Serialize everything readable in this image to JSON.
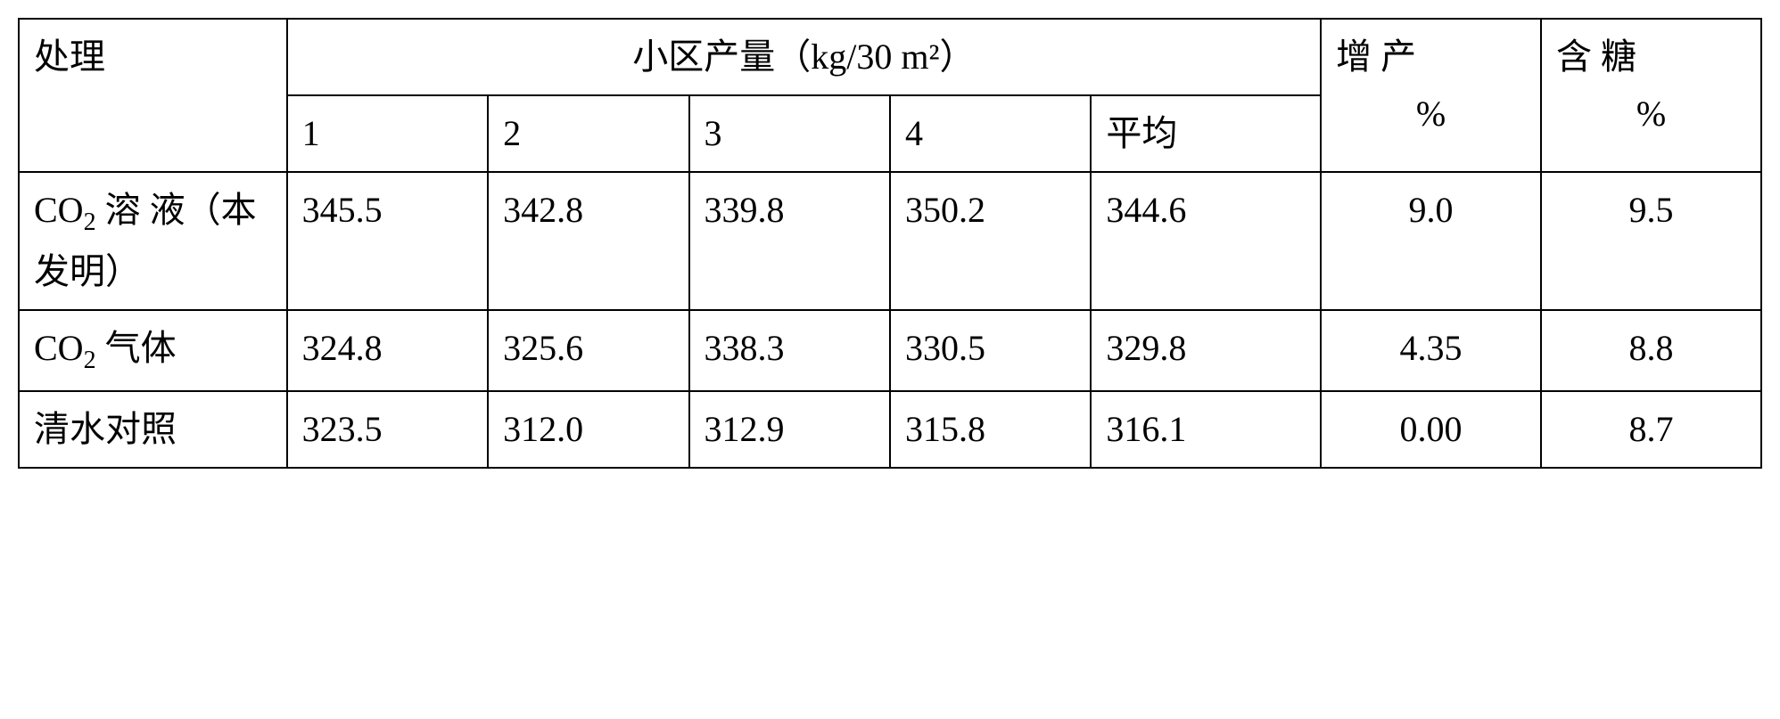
{
  "table": {
    "columns": {
      "treatment": "处理",
      "plot_yield_group": "小区产量（kg/30 m²）",
      "plot1": "1",
      "plot2": "2",
      "plot3": "3",
      "plot4": "4",
      "avg": "平均",
      "increase_line1": "增 产",
      "increase_line2": "%",
      "sugar_line1": "含 糖",
      "sugar_line2": "%"
    },
    "rows": [
      {
        "treatment_html": "CO<sub>2</sub> 溶 液（本发明）",
        "plot1": "345.5",
        "plot2": "342.8",
        "plot3": "339.8",
        "plot4": "350.2",
        "avg": "344.6",
        "increase": "9.0",
        "sugar": "9.5"
      },
      {
        "treatment_html": "CO<sub>2</sub> 气体",
        "plot1": "324.8",
        "plot2": "325.6",
        "plot3": "338.3",
        "plot4": "330.5",
        "avg": "329.8",
        "increase": "4.35",
        "sugar": "8.8"
      },
      {
        "treatment_html": "清水对照",
        "plot1": "323.5",
        "plot2": "312.0",
        "plot3": "312.9",
        "plot4": "315.8",
        "avg": "316.1",
        "increase": "0.00",
        "sugar": "8.7"
      }
    ],
    "style": {
      "font_size_pt": 40,
      "border_color": "#000000",
      "background_color": "#ffffff",
      "text_color": "#000000"
    }
  }
}
